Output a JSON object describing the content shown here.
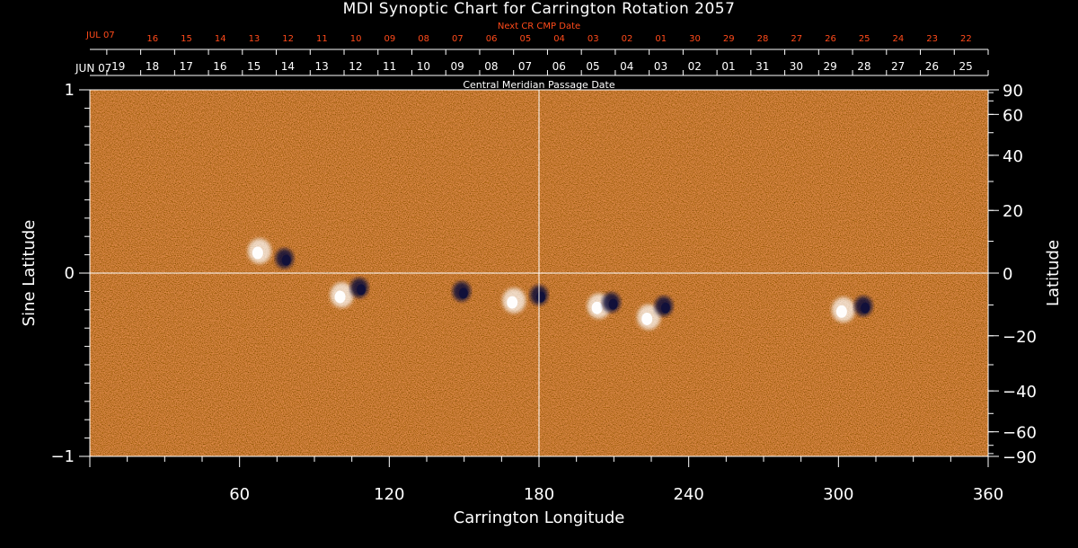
{
  "title": "MDI Synoptic Chart for Carrington Rotation 2057",
  "chart_data": {
    "type": "heatmap",
    "title": "MDI Synoptic Chart for Carrington Rotation 2057",
    "xlabel": "Carrington Longitude",
    "ylabel_left": "Sine Latitude",
    "ylabel_right": "Latitude",
    "xlim": [
      0,
      360
    ],
    "ylim": [
      -1,
      1
    ],
    "x_ticks": [
      60,
      120,
      180,
      240,
      300,
      360
    ],
    "y_ticks_left": [
      -1,
      0,
      1
    ],
    "y_tick_labels_left": [
      "−1",
      "0",
      "1"
    ],
    "y_ticks_right_deg": [
      90,
      60,
      40,
      20,
      0,
      -20,
      -40,
      -60,
      -90
    ],
    "y_tick_labels_right": [
      "90",
      "60",
      "40",
      "20",
      "0",
      "−20",
      "−40",
      "−60",
      "−90"
    ],
    "top_axis": {
      "label": "Central Meridian Passage Date",
      "start_label": "JUN 07",
      "dates": [
        "19",
        "18",
        "17",
        "16",
        "15",
        "14",
        "13",
        "12",
        "11",
        "10",
        "09",
        "08",
        "07",
        "06",
        "05",
        "04",
        "03",
        "02",
        "01",
        "31",
        "30",
        "29",
        "28",
        "27",
        "26",
        "25"
      ]
    },
    "next_cr_axis": {
      "label": "Next CR CMP Date",
      "start_label": "JUL 07",
      "dates": [
        "16",
        "15",
        "14",
        "13",
        "12",
        "11",
        "10",
        "09",
        "08",
        "07",
        "06",
        "05",
        "04",
        "03",
        "02",
        "01",
        "30",
        "29",
        "28",
        "27",
        "26",
        "25",
        "24",
        "23",
        "22"
      ]
    },
    "colormap": {
      "positive": "#ffffff",
      "neutral": "#e04510",
      "negative": "#10103a"
    },
    "grid": "crosshair at 180 longitude and 0 latitude",
    "active_regions": [
      {
        "lon": 68,
        "sinlat": 0.12,
        "polarity": "positive"
      },
      {
        "lon": 78,
        "sinlat": 0.08,
        "polarity": "negative"
      },
      {
        "lon": 101,
        "sinlat": -0.12,
        "polarity": "positive"
      },
      {
        "lon": 108,
        "sinlat": -0.08,
        "polarity": "negative"
      },
      {
        "lon": 149,
        "sinlat": -0.1,
        "polarity": "negative"
      },
      {
        "lon": 170,
        "sinlat": -0.15,
        "polarity": "positive"
      },
      {
        "lon": 180,
        "sinlat": -0.12,
        "polarity": "negative"
      },
      {
        "lon": 204,
        "sinlat": -0.18,
        "polarity": "positive"
      },
      {
        "lon": 209,
        "sinlat": -0.16,
        "polarity": "negative"
      },
      {
        "lon": 224,
        "sinlat": -0.24,
        "polarity": "positive"
      },
      {
        "lon": 230,
        "sinlat": -0.18,
        "polarity": "negative"
      },
      {
        "lon": 302,
        "sinlat": -0.2,
        "polarity": "positive"
      },
      {
        "lon": 310,
        "sinlat": -0.18,
        "polarity": "negative"
      }
    ]
  }
}
